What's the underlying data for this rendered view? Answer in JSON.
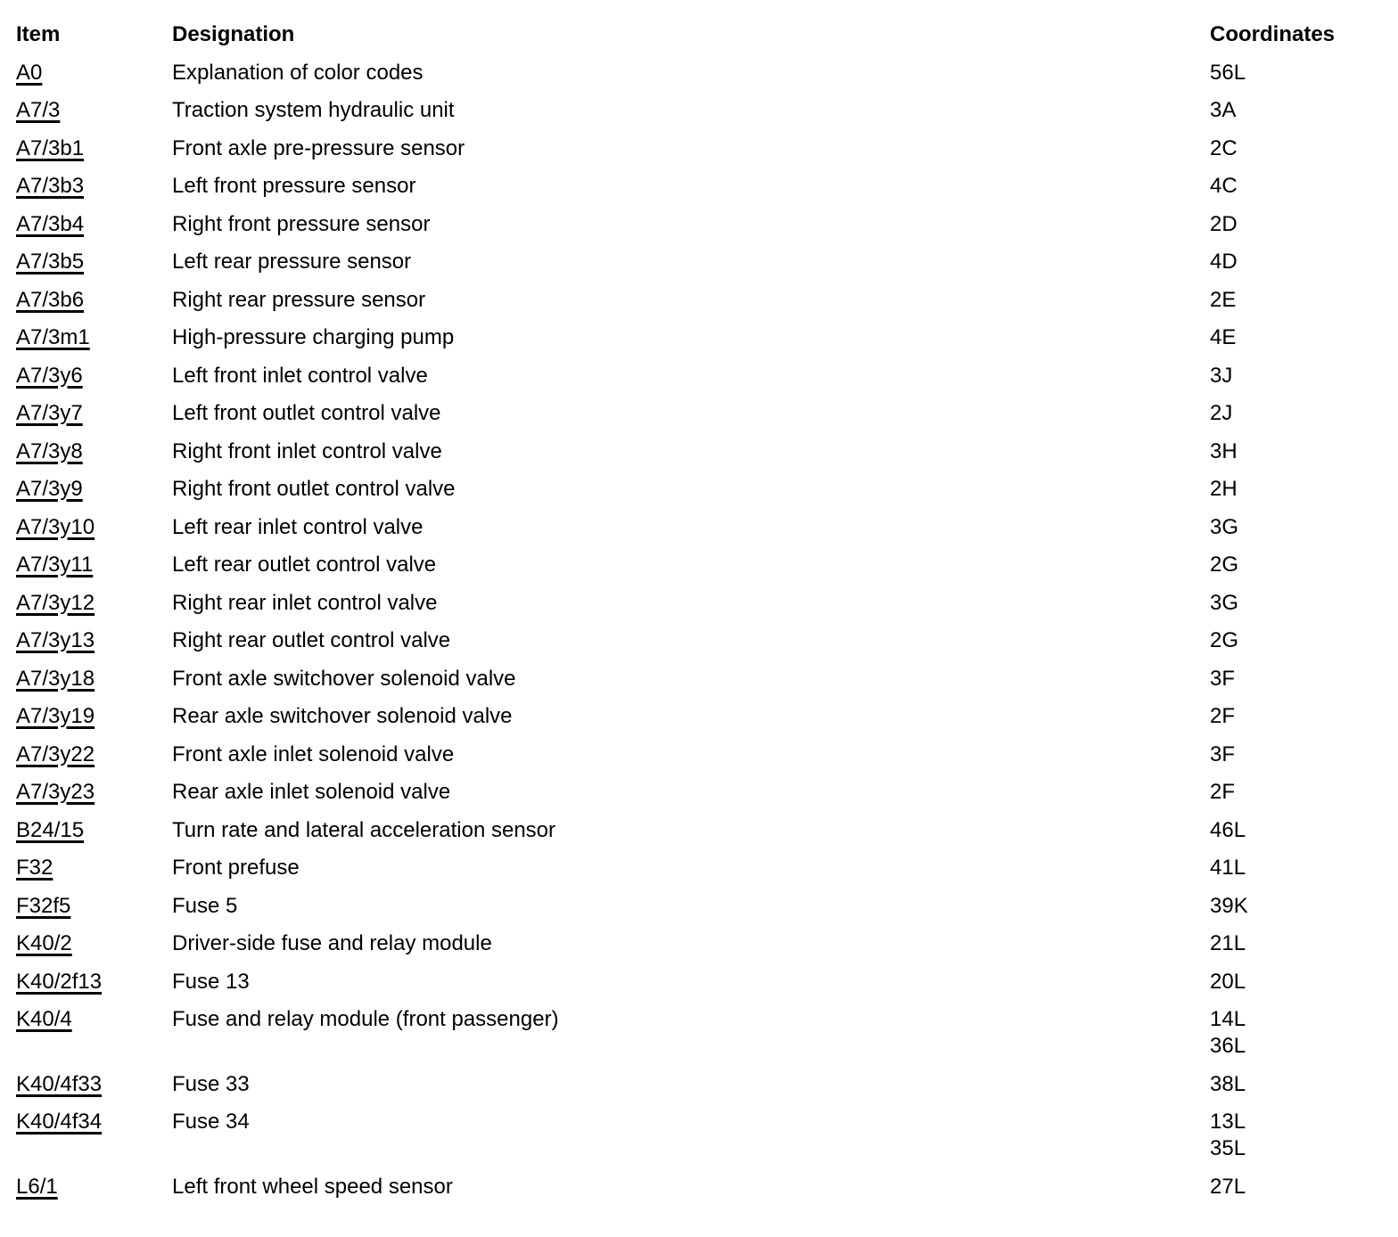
{
  "page": {
    "background": "#ffffff",
    "text_color": "#000000"
  },
  "table": {
    "headers": {
      "item": "Item",
      "designation": "Designation",
      "coordinates": "Coordinates"
    },
    "rows": [
      {
        "item": "A0",
        "designation": "Explanation of color codes",
        "coordinates": [
          "56L"
        ]
      },
      {
        "item": "A7/3",
        "designation": "Traction system hydraulic unit",
        "coordinates": [
          "3A"
        ]
      },
      {
        "item": "A7/3b1",
        "designation": "Front axle pre-pressure sensor",
        "coordinates": [
          "2C"
        ]
      },
      {
        "item": "A7/3b3",
        "designation": "Left front pressure sensor",
        "coordinates": [
          "4C"
        ]
      },
      {
        "item": "A7/3b4",
        "designation": "Right front pressure sensor",
        "coordinates": [
          "2D"
        ]
      },
      {
        "item": "A7/3b5",
        "designation": "Left rear pressure sensor",
        "coordinates": [
          "4D"
        ]
      },
      {
        "item": "A7/3b6",
        "designation": "Right rear pressure sensor",
        "coordinates": [
          "2E"
        ]
      },
      {
        "item": "A7/3m1",
        "designation": "High-pressure charging pump",
        "coordinates": [
          "4E"
        ]
      },
      {
        "item": "A7/3y6",
        "designation": "Left front inlet control valve",
        "coordinates": [
          "3J"
        ]
      },
      {
        "item": "A7/3y7",
        "designation": "Left front outlet control valve",
        "coordinates": [
          "2J"
        ]
      },
      {
        "item": "A7/3y8",
        "designation": "Right front inlet control valve",
        "coordinates": [
          "3H"
        ]
      },
      {
        "item": "A7/3y9",
        "designation": "Right front outlet control valve",
        "coordinates": [
          "2H"
        ]
      },
      {
        "item": "A7/3y10",
        "designation": "Left rear inlet control valve",
        "coordinates": [
          "3G"
        ]
      },
      {
        "item": "A7/3y11",
        "designation": "Left rear outlet control valve",
        "coordinates": [
          "2G"
        ]
      },
      {
        "item": "A7/3y12",
        "designation": "Right rear inlet control valve",
        "coordinates": [
          "3G"
        ]
      },
      {
        "item": "A7/3y13",
        "designation": "Right rear outlet control valve",
        "coordinates": [
          "2G"
        ]
      },
      {
        "item": "A7/3y18",
        "designation": "Front axle switchover solenoid valve",
        "coordinates": [
          "3F"
        ]
      },
      {
        "item": "A7/3y19",
        "designation": "Rear axle switchover solenoid valve",
        "coordinates": [
          "2F"
        ]
      },
      {
        "item": "A7/3y22",
        "designation": "Front axle inlet solenoid valve",
        "coordinates": [
          "3F"
        ]
      },
      {
        "item": "A7/3y23",
        "designation": "Rear axle inlet solenoid valve",
        "coordinates": [
          "2F"
        ]
      },
      {
        "item": "B24/15",
        "designation": "Turn rate and lateral acceleration sensor",
        "coordinates": [
          "46L"
        ]
      },
      {
        "item": "F32",
        "designation": "Front prefuse",
        "coordinates": [
          "41L"
        ]
      },
      {
        "item": "F32f5",
        "designation": "Fuse 5",
        "coordinates": [
          "39K"
        ]
      },
      {
        "item": "K40/2",
        "designation": "Driver-side fuse and relay module",
        "coordinates": [
          "21L"
        ]
      },
      {
        "item": "K40/2f13",
        "designation": "Fuse 13",
        "coordinates": [
          "20L"
        ]
      },
      {
        "item": "K40/4",
        "designation": "Fuse and relay module (front passenger)",
        "coordinates": [
          "14L",
          "36L"
        ]
      },
      {
        "item": "K40/4f33",
        "designation": "Fuse 33",
        "coordinates": [
          "38L"
        ]
      },
      {
        "item": "K40/4f34",
        "designation": "Fuse 34",
        "coordinates": [
          "13L",
          "35L"
        ]
      },
      {
        "item": "L6/1",
        "designation": "Left front wheel speed sensor",
        "coordinates": [
          "27L"
        ]
      }
    ]
  }
}
